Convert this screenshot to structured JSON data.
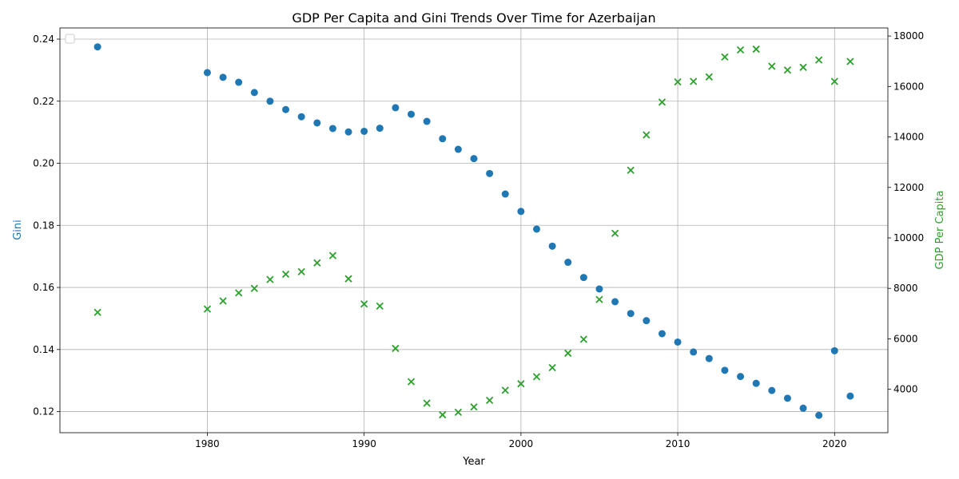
{
  "chart_data": {
    "type": "scatter",
    "title": "GDP Per Capita and Gini Trends Over Time for Azerbaijan",
    "xlabel": "Year",
    "ylabel_left": "Gini",
    "ylabel_right": "GDP Per Capita",
    "xlim": [
      1970.6,
      2023.4
    ],
    "ylim_left": [
      0.1132,
      0.2436
    ],
    "ylim_right": [
      2280,
      18320
    ],
    "x_ticks": [
      1980,
      1990,
      2000,
      2010,
      2020
    ],
    "y_left_ticks": [
      0.12,
      0.14,
      0.16,
      0.18,
      0.2,
      0.22,
      0.24
    ],
    "y_right_ticks": [
      4000,
      6000,
      8000,
      10000,
      12000,
      14000,
      16000,
      18000
    ],
    "grid": true,
    "legend": "top-left",
    "colors": {
      "gini": "#1f77b4",
      "gdp": "#2ca02c"
    },
    "series": [
      {
        "key": "gini",
        "axis": "left",
        "marker": "circle",
        "x": [
          1973,
          1980,
          1981,
          1982,
          1983,
          1984,
          1985,
          1986,
          1987,
          1988,
          1989,
          1990,
          1991,
          1992,
          1993,
          1994,
          1995,
          1996,
          1997,
          1998,
          1999,
          2000,
          2001,
          2002,
          2003,
          2004,
          2005,
          2006,
          2007,
          2008,
          2009,
          2010,
          2011,
          2012,
          2013,
          2014,
          2015,
          2016,
          2017,
          2018,
          2019,
          2020,
          2021
        ],
        "y": [
          0.2375,
          0.2292,
          0.2277,
          0.2261,
          0.2228,
          0.22,
          0.2173,
          0.215,
          0.213,
          0.2112,
          0.2101,
          0.2103,
          0.2113,
          0.2179,
          0.2158,
          0.2135,
          0.2079,
          0.2045,
          0.2015,
          0.1967,
          0.1901,
          0.1845,
          0.1788,
          0.1733,
          0.1681,
          0.1632,
          0.1595,
          0.1554,
          0.1516,
          0.1493,
          0.1451,
          0.1424,
          0.1392,
          0.1371,
          0.1333,
          0.1313,
          0.1291,
          0.1268,
          0.1243,
          0.1211,
          0.1188,
          0.1396,
          0.125
        ]
      },
      {
        "key": "gdp",
        "axis": "right",
        "marker": "x",
        "x": [
          1973,
          1980,
          1981,
          1982,
          1983,
          1984,
          1985,
          1986,
          1987,
          1988,
          1989,
          1990,
          1991,
          1992,
          1993,
          1994,
          1995,
          1996,
          1997,
          1998,
          1999,
          2000,
          2001,
          2002,
          2003,
          2004,
          2005,
          2006,
          2007,
          2008,
          2009,
          2010,
          2011,
          2012,
          2013,
          2014,
          2015,
          2016,
          2017,
          2018,
          2019,
          2020,
          2021
        ],
        "y": [
          7050,
          7180,
          7500,
          7820,
          8000,
          8350,
          8560,
          8660,
          9010,
          9300,
          8380,
          7380,
          7300,
          5620,
          4300,
          3450,
          2990,
          3090,
          3300,
          3560,
          3960,
          4220,
          4500,
          4860,
          5430,
          5980,
          7560,
          10180,
          12680,
          14080,
          15380,
          16180,
          16200,
          16380,
          17170,
          17450,
          17480,
          16800,
          16650,
          16760,
          17050,
          16200,
          16990
        ]
      }
    ]
  }
}
